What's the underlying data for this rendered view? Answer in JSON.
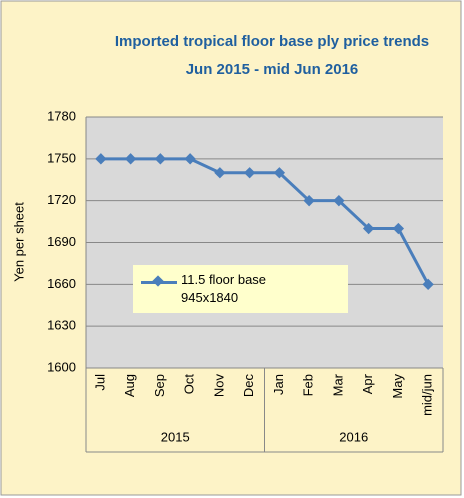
{
  "chart_data": {
    "type": "line",
    "title": "Imported tropical floor base ply price trends",
    "subtitle": "Jun 2015 - mid Jun 2016",
    "y_label": "Yen per sheet",
    "categories": [
      "Jul",
      "Aug",
      "Sep",
      "Oct",
      "Nov",
      "Dec",
      "Jan",
      "Feb",
      "Mar",
      "Apr",
      "May",
      "mid/jun"
    ],
    "category_groups": [
      {
        "label": "2015",
        "count": 6
      },
      {
        "label": "2016",
        "count": 6
      }
    ],
    "series": [
      {
        "name": "11.5 floor base 945x1840",
        "color": "#4a7ebb",
        "values": [
          1750,
          1750,
          1750,
          1750,
          1740,
          1740,
          1740,
          1720,
          1720,
          1700,
          1700,
          1660
        ]
      }
    ],
    "ylim": [
      1600,
      1780
    ],
    "yticks": [
      1600,
      1630,
      1660,
      1690,
      1720,
      1750,
      1780
    ],
    "grid": true
  }
}
